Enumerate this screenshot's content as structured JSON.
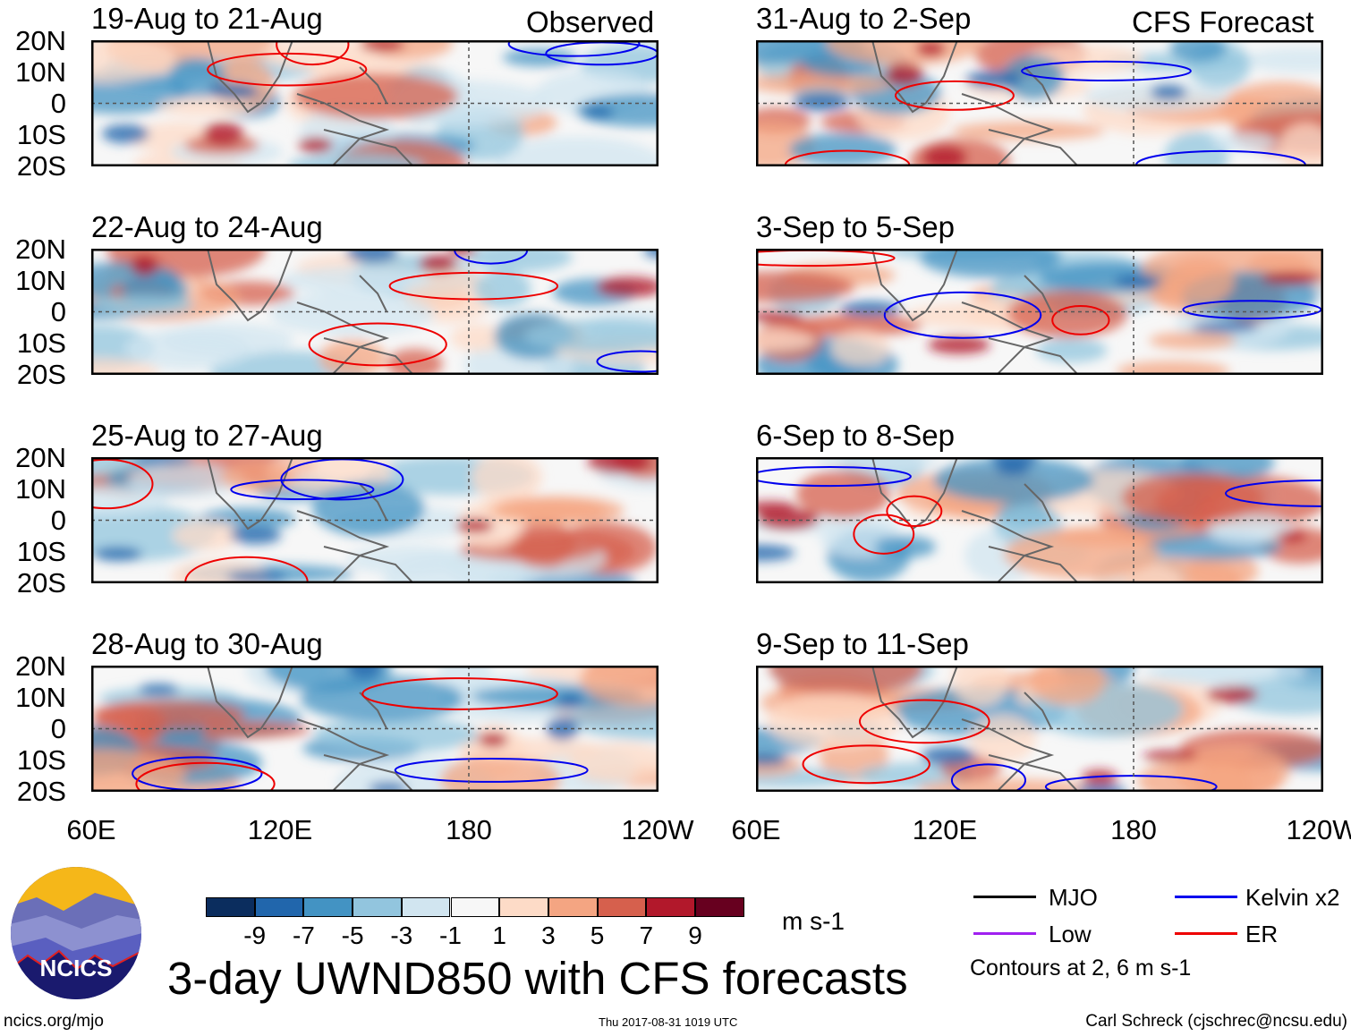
{
  "headers": {
    "observed": "Observed",
    "forecast": "CFS Forecast"
  },
  "panels": [
    {
      "title": "19-Aug to 21-Aug",
      "column": "observed"
    },
    {
      "title": "22-Aug to 24-Aug",
      "column": "observed"
    },
    {
      "title": "25-Aug to 27-Aug",
      "column": "observed"
    },
    {
      "title": "28-Aug to 30-Aug",
      "column": "observed"
    },
    {
      "title": "31-Aug to 2-Sep",
      "column": "forecast"
    },
    {
      "title": "3-Sep to 5-Sep",
      "column": "forecast"
    },
    {
      "title": "6-Sep to 8-Sep",
      "column": "forecast"
    },
    {
      "title": "9-Sep to 11-Sep",
      "column": "forecast"
    }
  ],
  "lat_labels": [
    "20N",
    "10N",
    "0",
    "10S",
    "20S"
  ],
  "lon_labels": [
    "60E",
    "120E",
    "180",
    "120W"
  ],
  "colorbar": {
    "colors": [
      "#0b2d5e",
      "#2166ac",
      "#4393c3",
      "#92c5de",
      "#d1e5f0",
      "#f7f7f7",
      "#fddbc7",
      "#f4a582",
      "#d6604d",
      "#b2182b",
      "#67001f"
    ],
    "labels": [
      "-9",
      "-7",
      "-5",
      "-3",
      "-1",
      "1",
      "3",
      "5",
      "7",
      "9"
    ],
    "units": "m s-1"
  },
  "legend": {
    "items": [
      {
        "label": "MJO",
        "color": "#000000"
      },
      {
        "label": "Kelvin x2",
        "color": "#0000ee"
      },
      {
        "label": "Low",
        "color": "#a020f0"
      },
      {
        "label": "ER",
        "color": "#ee0000"
      }
    ],
    "note": "Contours at 2, 6 m s-1"
  },
  "title": "3-day UWND850 with CFS forecasts",
  "logo_text": "NCICS",
  "footer": {
    "url": "ncics.org/mjo",
    "timestamp": "Thu 2017-08-31 1019 UTC",
    "author": "Carl Schreck (cjschrec@ncsu.edu)"
  }
}
